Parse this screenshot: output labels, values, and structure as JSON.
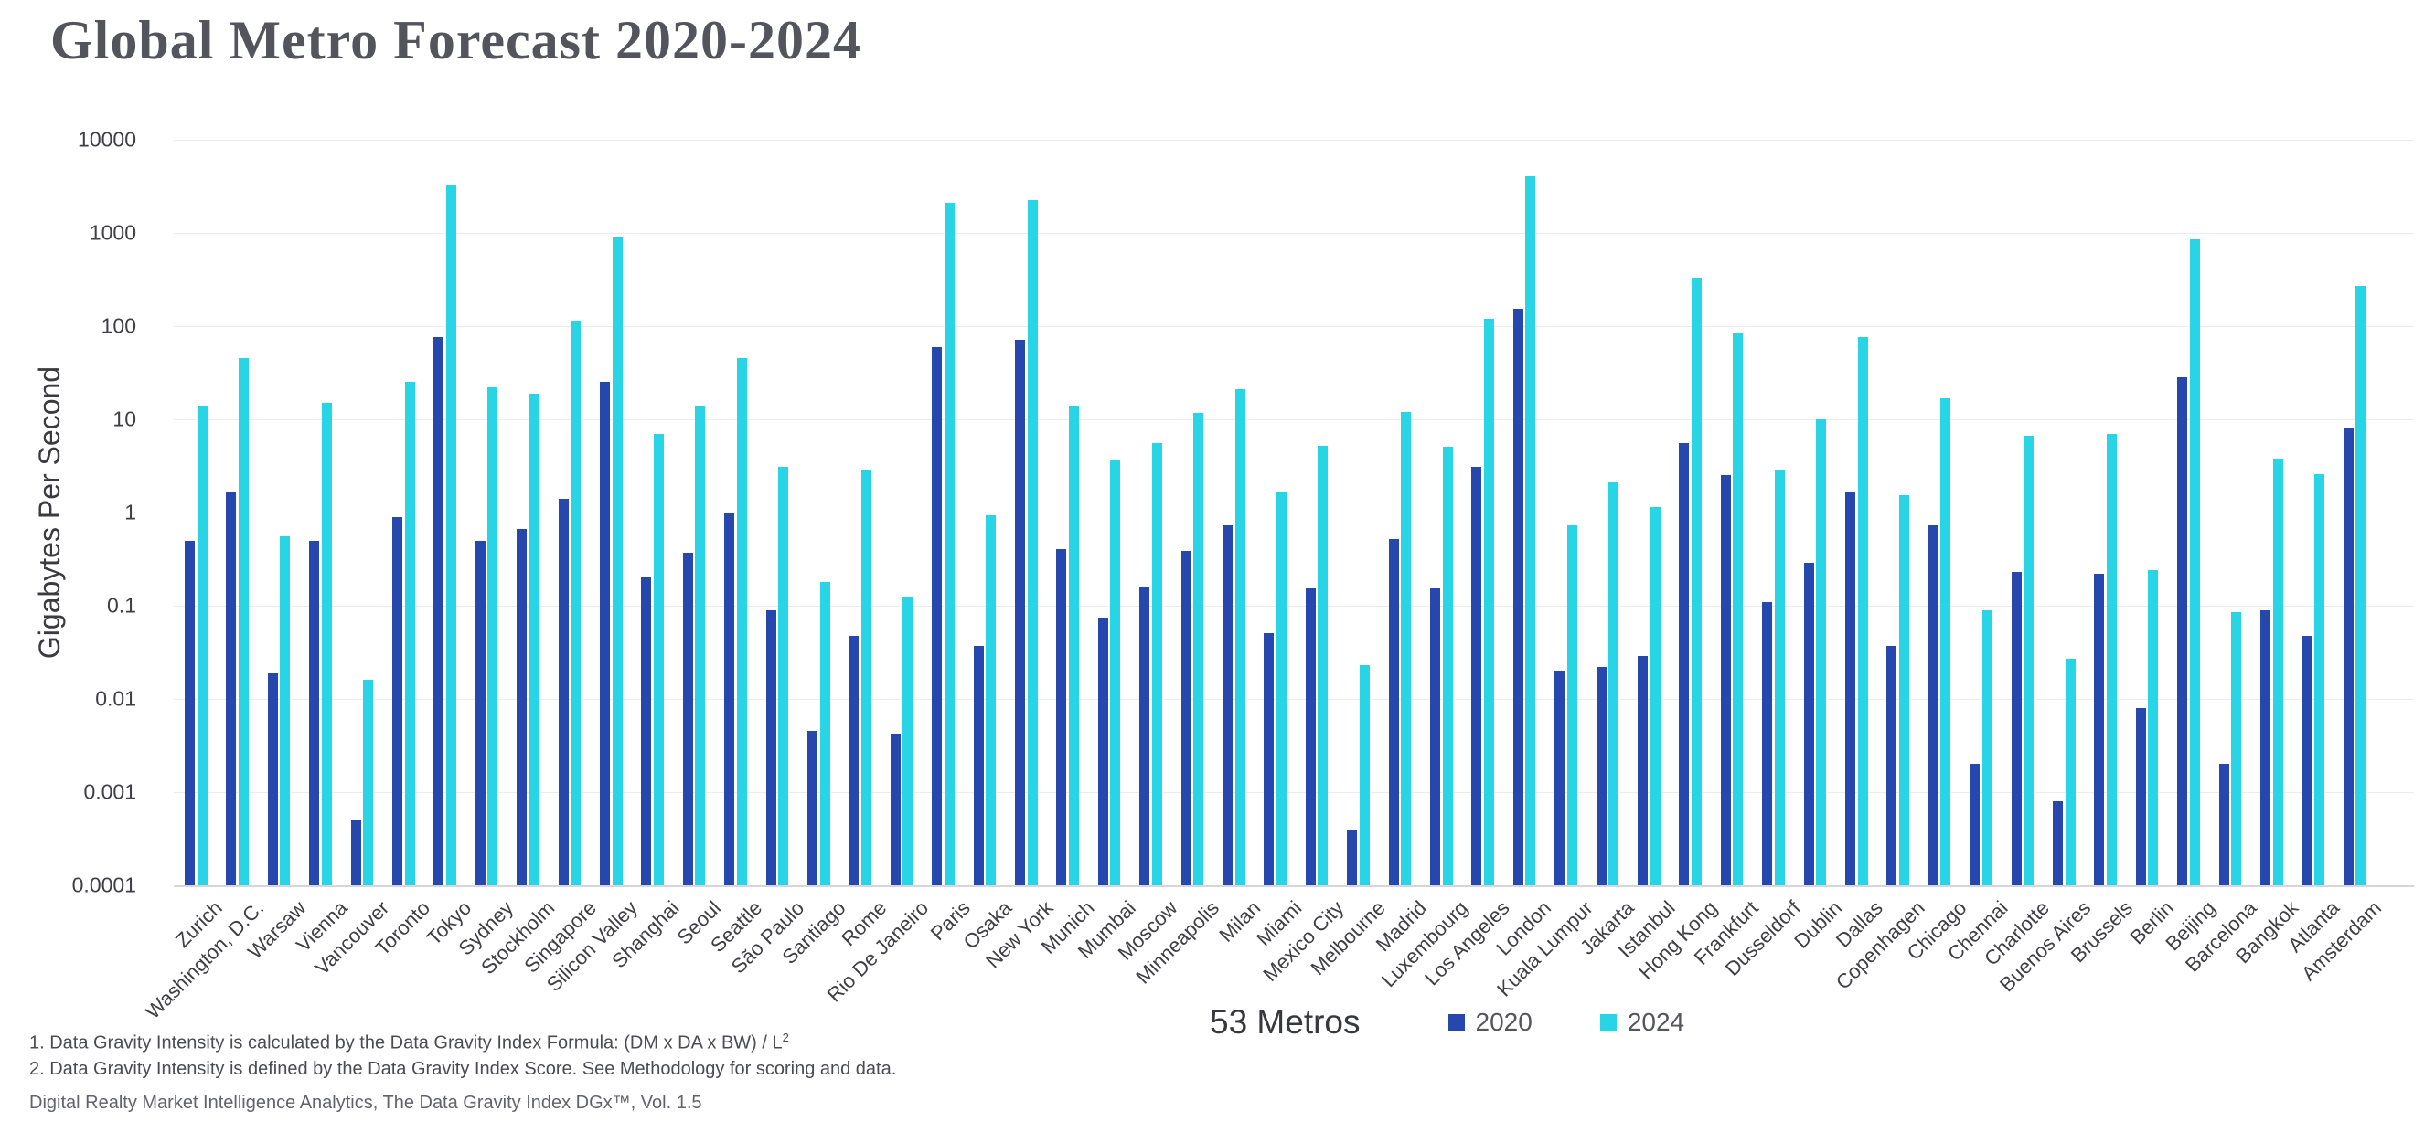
{
  "title": "Global Metro Forecast 2020-2024",
  "legend": {
    "metros_label": "53 Metros",
    "series_2020": "2020",
    "series_2024": "2024"
  },
  "colors": {
    "series_2020": "#2647AE",
    "series_2024": "#28D5E6",
    "gridline": "#ececef",
    "axis": "#d5d5da"
  },
  "footnotes": {
    "note1_main": "1. Data Gravity Intensity is calculated by the Data Gravity Index Formula: (DM x DA x BW) / L",
    "note1_sup": "2",
    "note2": "2. Data Gravity Intensity is defined by the Data Gravity Index Score. See Methodology for scoring and data.",
    "source": "Digital Realty Market Intelligence Analytics, The Data Gravity Index DGx™, Vol. 1.5"
  },
  "chart_data": {
    "type": "bar",
    "title": "Global Metro Forecast 2020-2024",
    "xlabel": "53 Metros",
    "ylabel": "Gigabytes Per Second",
    "y_scale": "log",
    "ylim": [
      0.0001,
      10000
    ],
    "y_ticks": [
      "10000",
      "1000",
      "100",
      "10",
      "1",
      "0.1",
      "0.01",
      "0.001",
      "0.0001"
    ],
    "grid": true,
    "legend_position": "bottom-center",
    "categories": [
      "Zurich",
      "Washington, D.C.",
      "Warsaw",
      "Vienna",
      "Vancouver",
      "Toronto",
      "Tokyo",
      "Sydney",
      "Stockholm",
      "Singapore",
      "Silicon Valley",
      "Shanghai",
      "Seoul",
      "Seattle",
      "São Paulo",
      "Santiago",
      "Rome",
      "Rio De Janeiro",
      "Paris",
      "Osaka",
      "New York",
      "Munich",
      "Mumbai",
      "Moscow",
      "Minneapolis",
      "Milan",
      "Miami",
      "Mexico City",
      "Melbourne",
      "Madrid",
      "Luxembourg",
      "Los Angeles",
      "London",
      "Kuala Lumpur",
      "Jakarta",
      "Istanbul",
      "Hong Kong",
      "Frankfurt",
      "Dusseldorf",
      "Dublin",
      "Dallas",
      "Copenhagen",
      "Chicago",
      "Chennai",
      "Charlotte",
      "Buenos Aires",
      "Brussels",
      "Berlin",
      "Beijing",
      "Barcelona",
      "Bangkok",
      "Atlanta",
      "Amsterdam"
    ],
    "series": [
      {
        "name": "2020",
        "values": [
          0.5,
          1.7,
          0.019,
          0.5,
          0.0005,
          0.9,
          76,
          0.5,
          0.67,
          1.4,
          25,
          0.2,
          0.37,
          1.0,
          0.09,
          0.0045,
          0.048,
          0.0042,
          60,
          0.037,
          72,
          0.41,
          0.075,
          0.16,
          0.39,
          0.73,
          0.051,
          0.155,
          0.0004,
          0.52,
          0.155,
          3.1,
          155,
          0.02,
          0.022,
          0.029,
          5.5,
          2.5,
          0.11,
          0.29,
          1.65,
          0.037,
          0.73,
          0.002,
          0.23,
          0.0008,
          0.22,
          0.008,
          28,
          0.002,
          0.09,
          0.047,
          8
        ]
      },
      {
        "name": "2024",
        "values": [
          14,
          45,
          0.56,
          15,
          0.016,
          25,
          3300,
          22,
          19,
          115,
          915,
          7,
          14,
          45,
          3.1,
          0.18,
          2.9,
          0.125,
          2100,
          0.93,
          2250,
          14,
          3.7,
          5.5,
          11.7,
          21,
          1.7,
          5.2,
          0.023,
          12,
          5.1,
          120,
          4100,
          0.73,
          2.1,
          1.14,
          330,
          86,
          2.9,
          10,
          77,
          1.55,
          17,
          0.09,
          6.7,
          0.027,
          7,
          0.24,
          850,
          0.085,
          3.8,
          2.6,
          270
        ]
      }
    ]
  }
}
